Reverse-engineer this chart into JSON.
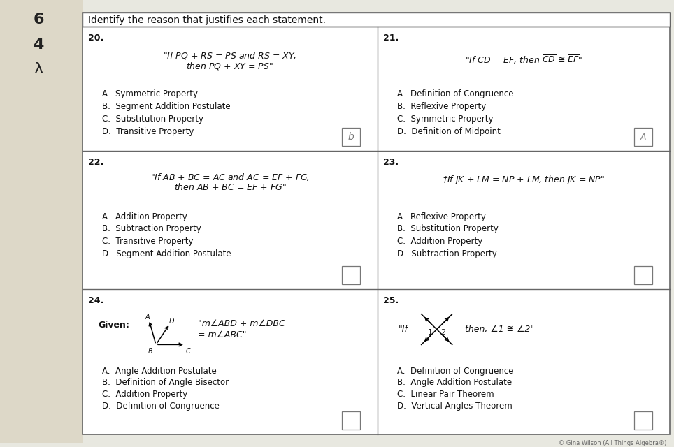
{
  "title": "Identify the reason that justifies each statement.",
  "background_color": "#f5f5f0",
  "border_color": "#555555",
  "q20_line1": "\"If PQ + RS = PS and RS = XY,",
  "q20_line2": "then PQ + XY = PS\"",
  "q20_choices": [
    "A.  Symmetric Property",
    "B.  Segment Addition Postulate",
    "C.  Substitution Property",
    "D.  Transitive Property"
  ],
  "q21_line1": "\"If CD = EF, then",
  "q21_choices": [
    "A.  Definition of Congruence",
    "B.  Reflexive Property",
    "C.  Symmetric Property",
    "D.  Definition of Midpoint"
  ],
  "q22_line1": "\"If AB + BC = AC and AC = EF + FG,",
  "q22_line2": "then AB + BC = EF + FG\"",
  "q22_choices": [
    "A.  Addition Property",
    "B.  Subtraction Property",
    "C.  Transitive Property",
    "D.  Segment Addition Postulate"
  ],
  "q23_line1": "†If JK + LM = NP + LM, then JK = NP\"",
  "q23_choices": [
    "A.  Reflexive Property",
    "B.  Substitution Property",
    "C.  Addition Property",
    "D.  Subtraction Property"
  ],
  "q24_statement_line1": "\"m∠ABD + m∠DBC",
  "q24_statement_line2": "= m∠ABC\"",
  "q24_choices": [
    "A.  Angle Addition Postulate",
    "B.  Definition of Angle Bisector",
    "C.  Addition Property",
    "D.  Definition of Congruence"
  ],
  "q25_line1": "\"If        then, ∠1 ≅ ∠2\"",
  "q25_choices": [
    "A.  Definition of Congruence",
    "B.  Angle Addition Postulate",
    "C.  Linear Pair Theorem",
    "D.  Vertical Angles Theorem"
  ],
  "text_color": "#111111",
  "line_color": "#666666",
  "left_numbers": [
    "6",
    "4",
    "λ"
  ],
  "footer": "© Gina Wilson (All Things Algebra®)"
}
